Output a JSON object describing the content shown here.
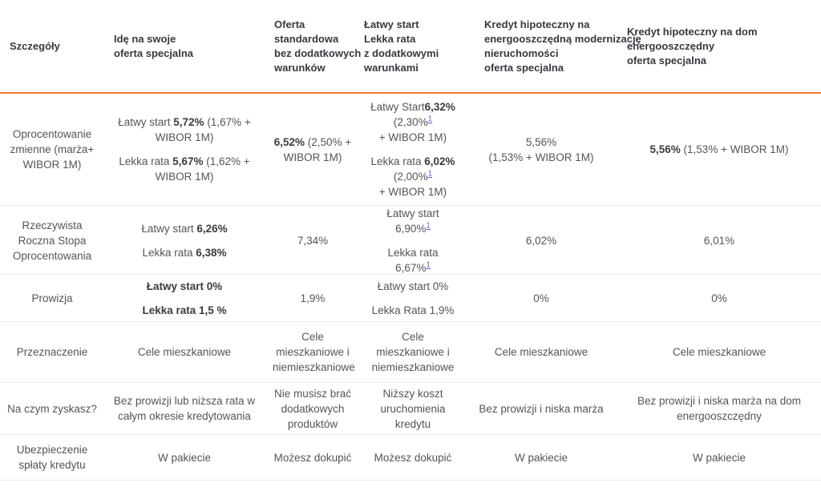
{
  "brand": {
    "accent_orange": "#ee7631",
    "footnote_link_blue": "#6363c8",
    "header_text": "#383840",
    "body_text": "#54545c",
    "divider_gray": "#ececec"
  },
  "table": {
    "columns": [
      {
        "id": "details",
        "label": "Szczegóły"
      },
      {
        "id": "ide-na-swoje",
        "label": "Idę na swoje\noferta specjalna"
      },
      {
        "id": "oferta-standardowa",
        "label": "Oferta\nstandardowa\nbez dodatkowych\nwarunków"
      },
      {
        "id": "latwy-start-lekka-rata",
        "label": "Łatwy start\nLekka rata\nz dodatkowymi\nwarunkami"
      },
      {
        "id": "eko-modernizacja",
        "label": "Kredyt hipoteczny na\nenergooszczędną modernizację\nnieruchomości\noferta specjalna"
      },
      {
        "id": "eko-dom",
        "label": "Kredyt hipoteczny na dom\nenergooszczędny\noferta specjalna"
      }
    ],
    "rows": [
      {
        "label": "Oprocentowanie zmienne (marża+ WIBOR 1M)",
        "cells": [
          [
            [
              {
                "t": "Łatwy start "
              },
              {
                "t": "5,72%",
                "b": true
              },
              {
                "t": " (1,67% + WIBOR 1M)"
              }
            ],
            [
              {
                "t": "Lekka rata "
              },
              {
                "t": "5,67%",
                "b": true
              },
              {
                "t": " (1,62% + WIBOR 1M)"
              }
            ]
          ],
          [
            [
              {
                "t": "6,52%",
                "b": true
              },
              {
                "t": " (2,50% + WIBOR 1M)"
              }
            ]
          ],
          [
            [
              {
                "t": "Łatwy Start"
              },
              {
                "t": "6,32%",
                "b": true
              },
              {
                "br": true
              },
              {
                "t": "(2,30%"
              },
              {
                "t": "1",
                "sup": true
              },
              {
                "br": true
              },
              {
                "t": "+ WIBOR 1M)"
              }
            ],
            [
              {
                "t": "Lekka rata "
              },
              {
                "t": "6,02%",
                "b": true
              },
              {
                "br": true
              },
              {
                "t": "(2,00%"
              },
              {
                "t": "1",
                "sup": true
              },
              {
                "br": true
              },
              {
                "t": "+ WIBOR 1M)"
              }
            ]
          ],
          [
            [
              {
                "t": "5,56%"
              },
              {
                "br": true
              },
              {
                "t": "(1,53% + WIBOR 1M)"
              }
            ]
          ],
          [
            [
              {
                "t": "5,56%",
                "b": true
              },
              {
                "t": " (1,53% + WIBOR 1M)"
              }
            ]
          ]
        ]
      },
      {
        "label": "Rzeczywista Roczna Stopa Oprocentowania",
        "cells": [
          [
            [
              {
                "t": "Łatwy start "
              },
              {
                "t": "6,26%",
                "b": true
              }
            ],
            [
              {
                "t": "Lekka rata "
              },
              {
                "t": "6,38%",
                "b": true
              }
            ]
          ],
          [
            [
              {
                "t": "7,34%"
              }
            ]
          ],
          [
            [
              {
                "t": "Łatwy start"
              },
              {
                "br": true
              },
              {
                "t": "6,90%"
              },
              {
                "t": "1",
                "sup": true
              }
            ],
            [
              {
                "t": "Lekka rata 6,67%"
              },
              {
                "t": "1",
                "sup": true
              }
            ]
          ],
          [
            [
              {
                "t": "6,02%"
              }
            ]
          ],
          [
            [
              {
                "t": "6,01%"
              }
            ]
          ]
        ]
      },
      {
        "label": "Prowizja",
        "cells": [
          [
            [
              {
                "t": "Łatwy start 0%",
                "b": true
              }
            ],
            [
              {
                "t": "Lekka rata 1,5 %",
                "b": true
              }
            ]
          ],
          [
            [
              {
                "t": "1,9%"
              }
            ]
          ],
          [
            [
              {
                "t": "Łatwy start 0%"
              }
            ],
            [
              {
                "t": "Lekka Rata 1,9%"
              }
            ]
          ],
          [
            [
              {
                "t": "0%"
              }
            ]
          ],
          [
            [
              {
                "t": "0%"
              }
            ]
          ]
        ]
      },
      {
        "label": "Przeznaczenie",
        "cells": [
          [
            [
              {
                "t": "Cele mieszkaniowe"
              }
            ]
          ],
          [
            [
              {
                "t": "Cele mieszkaniowe i niemieszkaniowe"
              }
            ]
          ],
          [
            [
              {
                "t": "Cele mieszkaniowe i niemieszkaniowe"
              }
            ]
          ],
          [
            [
              {
                "t": "Cele mieszkaniowe"
              }
            ]
          ],
          [
            [
              {
                "t": "Cele mieszkaniowe"
              }
            ]
          ]
        ]
      },
      {
        "label": "Na czym zyskasz?",
        "cells": [
          [
            [
              {
                "t": "Bez prowizji lub niższa rata w całym okresie kredytowania"
              }
            ]
          ],
          [
            [
              {
                "t": "Nie musisz brać dodatkowych produktów"
              }
            ]
          ],
          [
            [
              {
                "t": "Niższy koszt uruchomienia kredytu"
              }
            ]
          ],
          [
            [
              {
                "t": "Bez prowizji i niska marża"
              }
            ]
          ],
          [
            [
              {
                "t": "Bez prowizji i niska marża na dom energooszczędny"
              }
            ]
          ]
        ]
      },
      {
        "label": "Ubezpieczenie spłaty kredytu",
        "cells": [
          [
            [
              {
                "t": "W pakiecie"
              }
            ]
          ],
          [
            [
              {
                "t": "Możesz dokupić"
              }
            ]
          ],
          [
            [
              {
                "t": "Możesz dokupić"
              }
            ]
          ],
          [
            [
              {
                "t": "W pakiecie"
              }
            ]
          ],
          [
            [
              {
                "t": "W pakiecie"
              }
            ]
          ]
        ]
      }
    ]
  }
}
